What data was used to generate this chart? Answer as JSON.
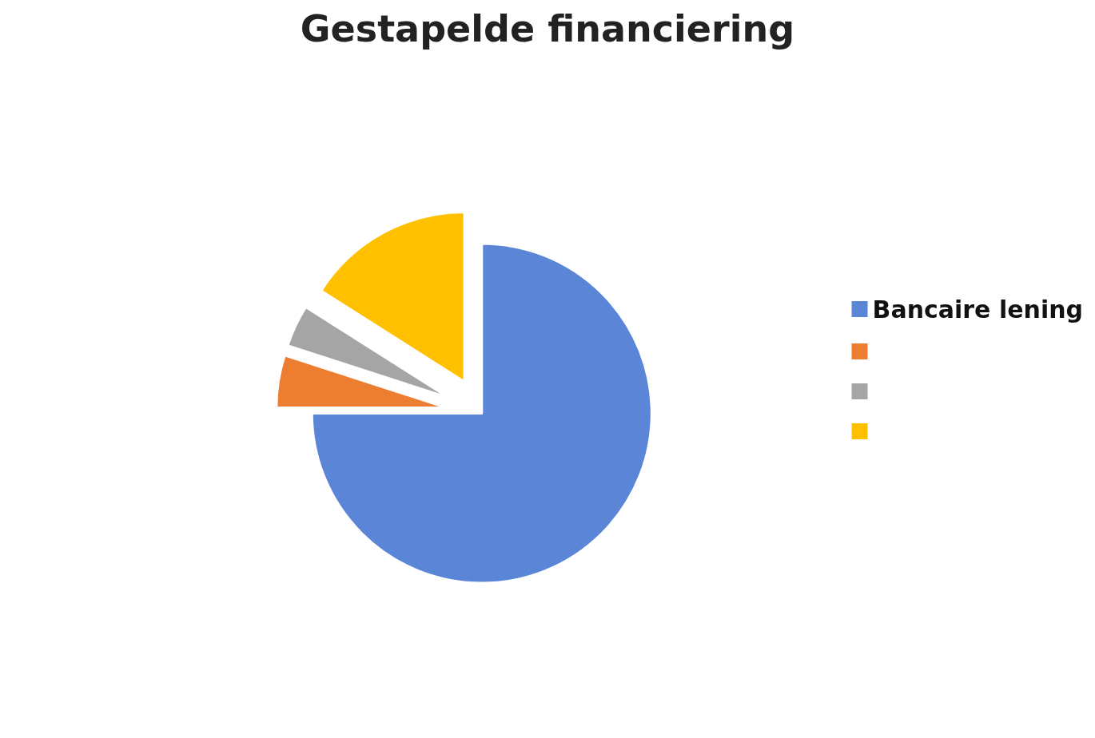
{
  "chart_data": {
    "type": "pie",
    "title": "Gestapelde financiering",
    "categories": [
      "Bancaire lening",
      null,
      null,
      null
    ],
    "values": [
      75,
      5,
      4,
      16
    ],
    "colors": [
      "#5b85d6",
      "#ed7d31",
      "#a5a5a5",
      "#ffc000"
    ],
    "legend": "right"
  }
}
